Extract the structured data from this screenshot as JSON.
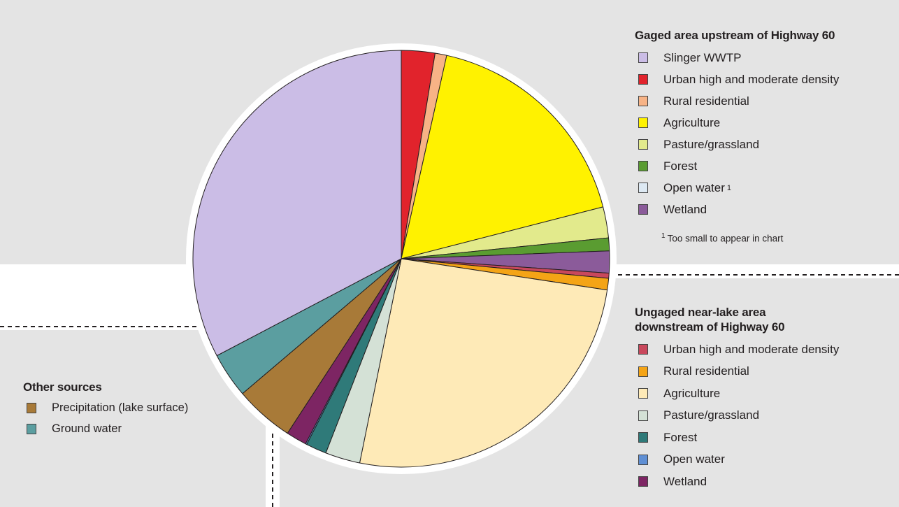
{
  "chart_data": {
    "type": "pie",
    "title": "",
    "slices": [
      {
        "group": "gaged",
        "label": "Urban high and moderate density",
        "value": 2.6,
        "color": "#e1232c"
      },
      {
        "group": "gaged",
        "label": "Rural residential",
        "value": 0.9,
        "color": "#f7b386"
      },
      {
        "group": "gaged",
        "label": "Agriculture",
        "value": 17.5,
        "color": "#fff200"
      },
      {
        "group": "gaged",
        "label": "Pasture/grassland",
        "value": 2.4,
        "color": "#e2ea8c"
      },
      {
        "group": "gaged",
        "label": "Forest",
        "value": 1.0,
        "color": "#5a9c31"
      },
      {
        "group": "gaged",
        "label": "Wetland",
        "value": 1.7,
        "color": "#8b5b9a"
      },
      {
        "group": "ungaged",
        "label": "Urban high and moderate density",
        "value": 0.4,
        "color": "#c9485c"
      },
      {
        "group": "ungaged",
        "label": "Rural residential",
        "value": 0.9,
        "color": "#f4a416"
      },
      {
        "group": "ungaged",
        "label": "Agriculture",
        "value": 25.8,
        "color": "#feeab7"
      },
      {
        "group": "ungaged",
        "label": "Pasture/grassland",
        "value": 2.7,
        "color": "#d4e1d6"
      },
      {
        "group": "ungaged",
        "label": "Forest",
        "value": 1.6,
        "color": "#2f7a79"
      },
      {
        "group": "ungaged",
        "label": "Open water",
        "value": 0.1,
        "color": "#5f8fd4"
      },
      {
        "group": "ungaged",
        "label": "Wetland",
        "value": 1.6,
        "color": "#7d2563"
      },
      {
        "group": "other",
        "label": "Precipitation (lake surface)",
        "value": 4.6,
        "color": "#a87a38"
      },
      {
        "group": "other",
        "label": "Ground water",
        "value": 3.5,
        "color": "#5b9ea0"
      },
      {
        "group": "gaged",
        "label": "Slinger WWTP",
        "value": 32.7,
        "color": "#cbbde6"
      }
    ]
  },
  "legends": {
    "gaged": {
      "title": "Gaged area upstream of Highway 60",
      "items": [
        {
          "label": "Slinger WWTP",
          "color": "#cbbde6"
        },
        {
          "label": "Urban high and moderate density",
          "color": "#e1232c"
        },
        {
          "label": "Rural residential",
          "color": "#f7b386"
        },
        {
          "label": "Agriculture",
          "color": "#fff200"
        },
        {
          "label": "Pasture/grassland",
          "color": "#e2ea8c"
        },
        {
          "label": "Forest",
          "color": "#5a9c31"
        },
        {
          "label": "Open water",
          "color": "#dde9f3",
          "footnote_mark": "1"
        },
        {
          "label": "Wetland",
          "color": "#8b5b9a"
        }
      ],
      "footnote_number": "1",
      "footnote_text": "Too small to appear in chart"
    },
    "ungaged": {
      "title_line1": "Ungaged near-lake area",
      "title_line2": "downstream of Highway 60",
      "items": [
        {
          "label": "Urban high and moderate density",
          "color": "#c9485c"
        },
        {
          "label": "Rural residential",
          "color": "#f4a416"
        },
        {
          "label": "Agriculture",
          "color": "#feeab7"
        },
        {
          "label": "Pasture/grassland",
          "color": "#d4e1d6"
        },
        {
          "label": "Forest",
          "color": "#2f7a79"
        },
        {
          "label": "Open water",
          "color": "#5f8fd4"
        },
        {
          "label": "Wetland",
          "color": "#7d2563"
        }
      ]
    },
    "other": {
      "title": "Other sources",
      "items": [
        {
          "label": "Precipitation (lake surface)",
          "color": "#a87a38"
        },
        {
          "label": "Ground water",
          "color": "#5b9ea0"
        }
      ]
    }
  }
}
